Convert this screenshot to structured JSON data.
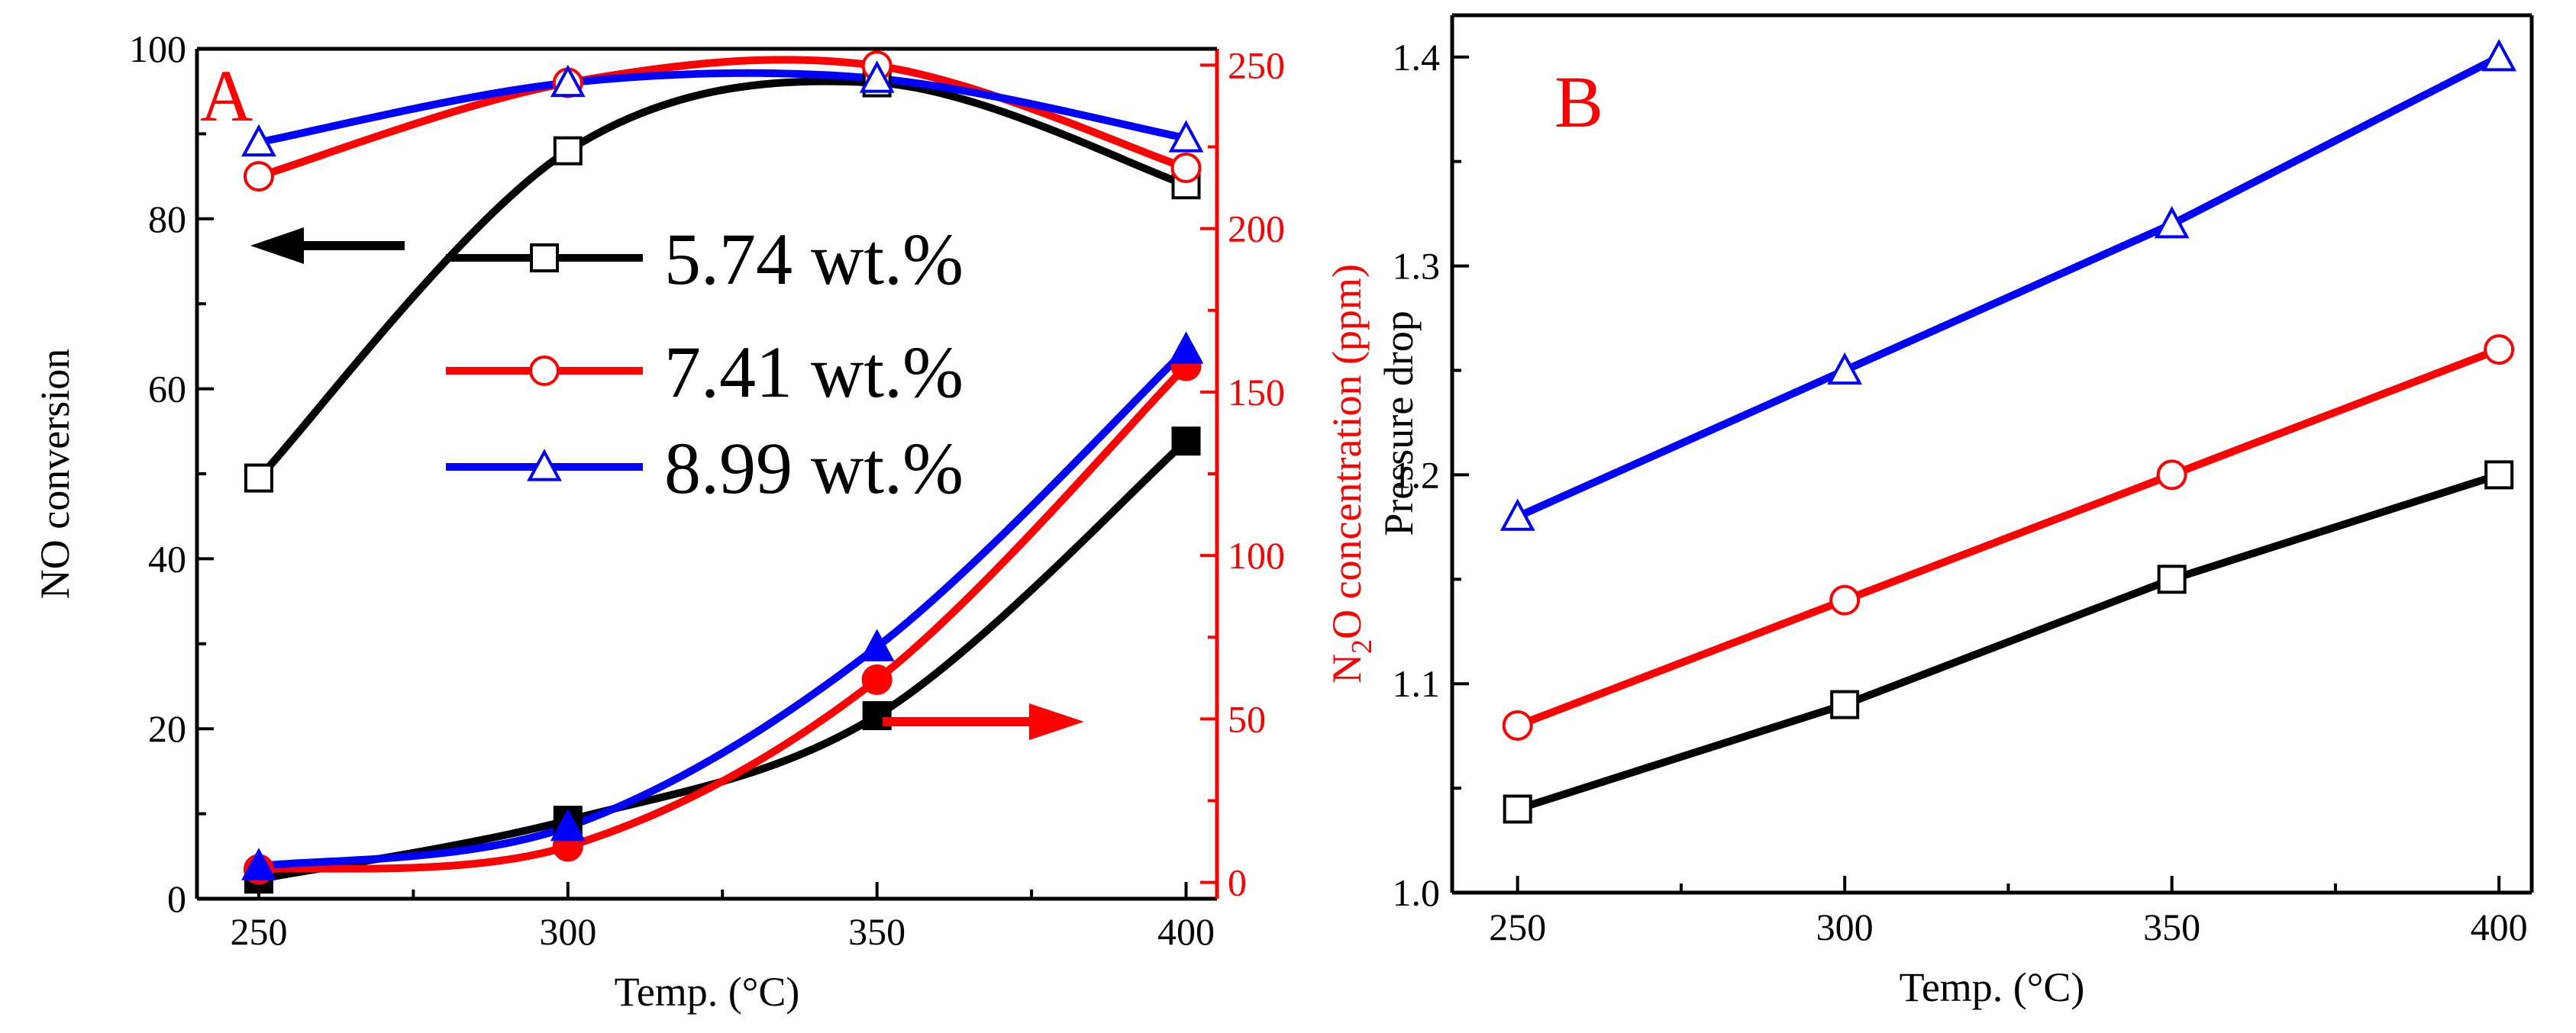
{
  "chart_data": [
    {
      "panel": "A",
      "type": "line",
      "panel_label": "A",
      "xlabel": "Temp. (°C)",
      "ylabel": "NO conversion",
      "y2label_prefix": "N",
      "y2label_sub": "2",
      "y2label_suffix": "O concentration (ppm)",
      "x": [
        250,
        300,
        350,
        400
      ],
      "xlim": [
        240,
        405
      ],
      "ylim": [
        0,
        100
      ],
      "y2lim": [
        -5,
        255
      ],
      "xticks": [
        250,
        300,
        350,
        400
      ],
      "yticks": [
        0,
        20,
        40,
        60,
        80,
        100
      ],
      "y2ticks": [
        0,
        50,
        100,
        150,
        200,
        250
      ],
      "series": [
        {
          "name": "5.74 wt.%",
          "color": "#000000",
          "marker": "square",
          "axis": "NO conversion",
          "values": [
            49.5,
            88,
            96,
            84
          ]
        },
        {
          "name": "7.41 wt.%",
          "color": "#ff0000",
          "marker": "circle",
          "axis": "NO conversion",
          "values": [
            85,
            96,
            98,
            86
          ]
        },
        {
          "name": "8.99 wt.%",
          "color": "#0000ff",
          "marker": "triangle",
          "axis": "NO conversion",
          "values": [
            89,
            96,
            96.5,
            89.5
          ]
        },
        {
          "name": "5.74 wt.%",
          "color": "#000000",
          "marker": "square-filled",
          "axis": "N2O concentration (ppm)",
          "values": [
            1,
            19,
            51,
            135
          ]
        },
        {
          "name": "7.41 wt.%",
          "color": "#ff0000",
          "marker": "circle-filled",
          "axis": "N2O concentration (ppm)",
          "values": [
            4,
            11,
            62,
            158
          ]
        },
        {
          "name": "8.99 wt.%",
          "color": "#0000ff",
          "marker": "triangle-filled",
          "axis": "N2O concentration (ppm)",
          "values": [
            5,
            17,
            72,
            163
          ]
        }
      ],
      "legend": [
        "5.74 wt.%",
        "7.41 wt.%",
        "8.99 wt.%"
      ]
    },
    {
      "panel": "B",
      "type": "line",
      "panel_label": "B",
      "xlabel": "Temp. (°C)",
      "ylabel": "Pressure drop",
      "x": [
        250,
        300,
        350,
        400
      ],
      "xlim": [
        240,
        405
      ],
      "ylim": [
        1.0,
        1.42
      ],
      "xticks": [
        250,
        300,
        350,
        400
      ],
      "yticks": [
        1.0,
        1.1,
        1.2,
        1.3,
        1.4
      ],
      "ytick_labels": [
        "1.0",
        "1.1",
        "1.2",
        "1.3",
        "1.4"
      ],
      "series": [
        {
          "name": "5.74 wt.%",
          "color": "#000000",
          "marker": "square",
          "values": [
            1.04,
            1.09,
            1.15,
            1.2
          ]
        },
        {
          "name": "7.41 wt.%",
          "color": "#ff0000",
          "marker": "circle",
          "values": [
            1.08,
            1.14,
            1.2,
            1.26
          ]
        },
        {
          "name": "8.99 wt.%",
          "color": "#0000ff",
          "marker": "triangle",
          "values": [
            1.18,
            1.25,
            1.32,
            1.4
          ]
        }
      ]
    }
  ]
}
